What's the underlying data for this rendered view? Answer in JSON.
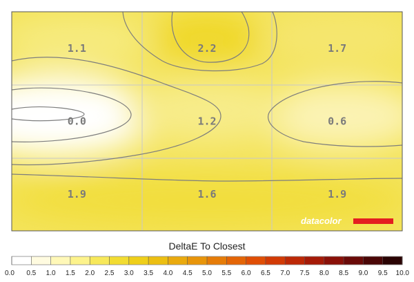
{
  "chart_data": {
    "type": "heatmap",
    "rows": 3,
    "cols": 3,
    "values": [
      [
        1.1,
        2.2,
        1.7
      ],
      [
        0.0,
        1.2,
        0.6
      ],
      [
        1.9,
        1.6,
        1.9
      ]
    ],
    "value_labels": [
      [
        "1.1",
        "2.2",
        "1.7"
      ],
      [
        "0.0",
        "1.2",
        "0.6"
      ],
      [
        "1.9",
        "1.6",
        "1.9"
      ]
    ],
    "colorbar_title": "DeltaE To Closest",
    "colorbar_ticks": [
      "0.0",
      "0.5",
      "1.0",
      "1.5",
      "2.0",
      "2.5",
      "3.0",
      "3.5",
      "4.0",
      "4.5",
      "5.0",
      "5.5",
      "6.0",
      "6.5",
      "7.0",
      "7.5",
      "8.0",
      "8.5",
      "9.0",
      "9.5",
      "10.0"
    ],
    "colorbar_colors": [
      "#ffffff",
      "#fffbe0",
      "#fff8b8",
      "#fdf38c",
      "#f7e85a",
      "#f2dc32",
      "#efcf1a",
      "#ecbf12",
      "#eaaa0e",
      "#e8950a",
      "#e67c08",
      "#e46506",
      "#e04e05",
      "#d23a05",
      "#bd2806",
      "#a51a07",
      "#8a1008",
      "#6a0a08",
      "#4a0606",
      "#2a0303"
    ],
    "colorbar_range": [
      0,
      10
    ],
    "brand": "datacolor",
    "colors": {
      "brand_bar": "#e41e20",
      "grid": "#c8c8c8",
      "contour": "#7d7d7d",
      "frame": "#555555"
    }
  }
}
